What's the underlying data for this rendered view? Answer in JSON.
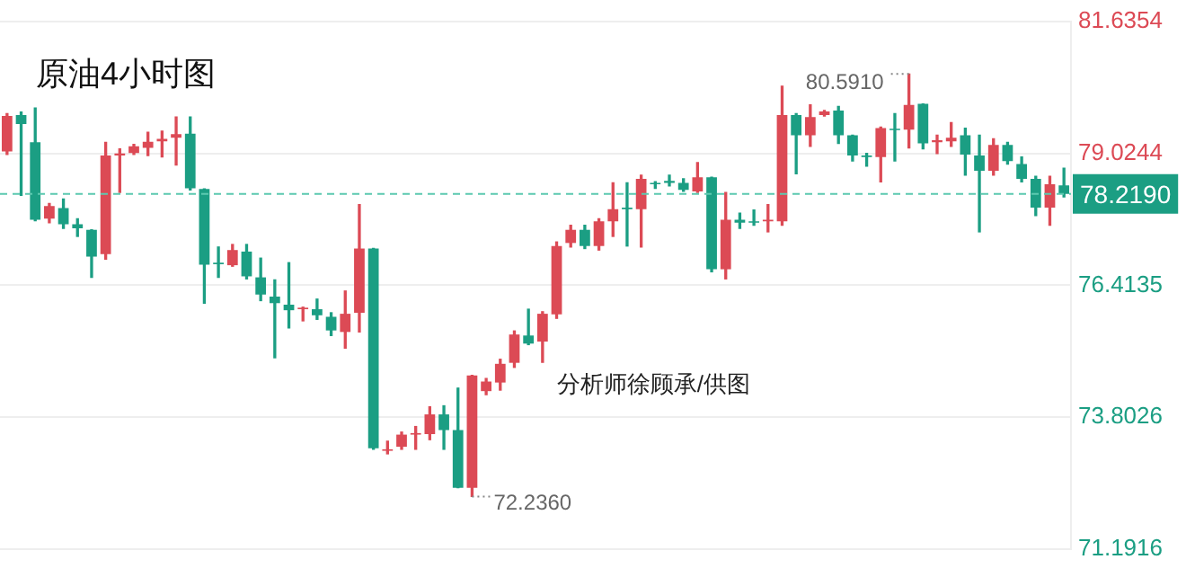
{
  "chart_data": {
    "type": "candlestick",
    "title": "原油4小时图",
    "categories": [
      null,
      null,
      null,
      null,
      null,
      null,
      null,
      null,
      null,
      null,
      null,
      null,
      null,
      null,
      null,
      null,
      null,
      null,
      null,
      null,
      null,
      null,
      null,
      null,
      null,
      null,
      null,
      null,
      null,
      null,
      null,
      null,
      null,
      null,
      null,
      null,
      null,
      null,
      null,
      null,
      null,
      null,
      null,
      null,
      null,
      null,
      null,
      null,
      null,
      null,
      null,
      null,
      null,
      null,
      null,
      null,
      null,
      null,
      null,
      null,
      null,
      null,
      null,
      null,
      null,
      null,
      null,
      null,
      null,
      null,
      null,
      null,
      null,
      null,
      null,
      null
    ],
    "series": [
      {
        "colors": [
          "#dc4a55",
          "#1b9e83",
          "#1b9e83",
          "#dc4a55",
          "#1b9e83",
          "#1b9e83",
          "#1b9e83",
          "#dc4a55",
          "#dc4a55",
          "#dc4a55",
          "#dc4a55",
          "#dc4a55",
          "#dc4a55",
          "#1b9e83",
          "#1b9e83",
          "#1b9e83",
          "#dc4a55",
          "#1b9e83",
          "#1b9e83",
          "#1b9e83",
          "#1b9e83",
          "#dc4a55",
          "#1b9e83",
          "#1b9e83",
          "#dc4a55",
          "#dc4a55",
          "#1b9e83",
          "#dc4a55",
          "#dc4a55",
          "#dc4a55",
          "#dc4a55",
          "#1b9e83",
          "#1b9e83",
          "#dc4a55",
          "#dc4a55",
          "#dc4a55",
          "#dc4a55",
          "#1b9e83",
          "#dc4a55",
          "#dc4a55",
          "#dc4a55",
          "#1b9e83",
          "#dc4a55",
          "#dc4a55",
          "#1b9e83",
          "#dc4a55",
          "#1b9e83",
          "#1b9e83",
          "#1b9e83",
          "#dc4a55",
          "#1b9e83",
          "#dc4a55",
          "#1b9e83",
          "#1b9e83",
          "#dc4a55",
          "#dc4a55",
          "#1b9e83",
          "#dc4a55",
          "#dc4a55",
          "#1b9e83",
          "#1b9e83",
          "#1b9e83",
          "#dc4a55",
          "#1b9e83",
          "#dc4a55",
          "#1b9e83",
          "#dc4a55",
          "#dc4a55",
          "#1b9e83",
          "#1b9e83",
          "#dc4a55",
          "#1b9e83",
          "#1b9e83",
          "#1b9e83",
          "#dc4a55",
          "#1b9e83"
        ],
        "ohlc": [
          [
            79.06,
            79.81,
            79.0,
            79.76
          ],
          [
            79.78,
            79.84,
            78.19,
            79.6
          ],
          [
            79.24,
            79.92,
            77.69,
            77.71
          ],
          [
            77.73,
            78.03,
            77.65,
            77.98
          ],
          [
            77.94,
            78.12,
            77.54,
            77.62
          ],
          [
            77.62,
            77.73,
            77.38,
            77.54
          ],
          [
            77.51,
            77.51,
            76.57,
            76.98
          ],
          [
            77.03,
            79.24,
            76.93,
            78.98
          ],
          [
            78.98,
            79.11,
            78.25,
            79.02
          ],
          [
            79.03,
            79.2,
            79.0,
            79.16
          ],
          [
            79.13,
            79.44,
            78.98,
            79.25
          ],
          [
            79.26,
            79.46,
            78.95,
            79.31
          ],
          [
            79.33,
            79.74,
            78.79,
            79.4
          ],
          [
            79.41,
            79.74,
            78.3,
            78.33
          ],
          [
            78.32,
            78.32,
            76.06,
            76.82
          ],
          [
            76.86,
            77.17,
            76.57,
            76.83
          ],
          [
            76.81,
            77.22,
            76.79,
            77.11
          ],
          [
            77.08,
            77.22,
            76.54,
            76.59
          ],
          [
            76.57,
            76.95,
            76.11,
            76.23
          ],
          [
            76.19,
            76.52,
            74.98,
            76.06
          ],
          [
            76.03,
            76.86,
            75.57,
            75.92
          ],
          [
            75.94,
            75.98,
            75.71,
            75.97
          ],
          [
            75.94,
            76.14,
            75.74,
            75.82
          ],
          [
            75.79,
            75.87,
            75.42,
            75.52
          ],
          [
            75.49,
            76.3,
            75.17,
            75.85
          ],
          [
            75.87,
            78.01,
            75.49,
            77.14
          ],
          [
            77.14,
            77.14,
            73.17,
            73.19
          ],
          [
            73.14,
            73.33,
            73.08,
            73.17
          ],
          [
            73.22,
            73.51,
            73.17,
            73.46
          ],
          [
            73.46,
            73.62,
            73.17,
            73.49
          ],
          [
            73.47,
            74.01,
            73.36,
            73.86
          ],
          [
            73.86,
            74.03,
            73.17,
            73.55
          ],
          [
            73.55,
            74.38,
            72.41,
            72.41
          ],
          [
            72.41,
            74.63,
            72.236,
            74.63
          ],
          [
            74.32,
            74.57,
            74.25,
            74.51
          ],
          [
            74.49,
            74.95,
            74.34,
            74.86
          ],
          [
            74.88,
            75.51,
            74.79,
            75.44
          ],
          [
            75.42,
            75.94,
            75.24,
            75.26
          ],
          [
            75.3,
            75.89,
            74.89,
            75.85
          ],
          [
            75.84,
            77.27,
            75.76,
            77.19
          ],
          [
            77.25,
            77.6,
            77.17,
            77.51
          ],
          [
            77.51,
            77.6,
            77.14,
            77.19
          ],
          [
            77.19,
            77.73,
            77.11,
            77.68
          ],
          [
            77.68,
            78.44,
            77.38,
            77.92
          ],
          [
            77.95,
            78.44,
            77.19,
            77.92
          ],
          [
            77.92,
            78.59,
            77.17,
            78.52
          ],
          [
            78.44,
            78.46,
            78.33,
            78.41
          ],
          [
            78.48,
            78.59,
            78.38,
            78.44
          ],
          [
            78.44,
            78.52,
            78.27,
            78.3
          ],
          [
            78.27,
            78.84,
            78.25,
            78.55
          ],
          [
            78.55,
            78.55,
            76.68,
            76.73
          ],
          [
            76.73,
            78.25,
            76.54,
            77.71
          ],
          [
            77.71,
            77.84,
            77.54,
            77.65
          ],
          [
            77.68,
            77.9,
            77.6,
            77.65
          ],
          [
            77.68,
            78.01,
            77.47,
            77.71
          ],
          [
            77.68,
            80.35,
            77.6,
            79.78
          ],
          [
            79.78,
            79.81,
            78.62,
            79.38
          ],
          [
            79.38,
            79.98,
            79.16,
            79.74
          ],
          [
            79.78,
            79.87,
            79.76,
            79.85
          ],
          [
            79.87,
            79.95,
            79.22,
            79.38
          ],
          [
            79.38,
            79.38,
            78.87,
            78.98
          ],
          [
            78.98,
            79.02,
            78.77,
            78.95
          ],
          [
            78.95,
            79.54,
            78.46,
            79.52
          ],
          [
            79.51,
            79.81,
            78.87,
            79.48
          ],
          [
            79.49,
            80.591,
            79.13,
            79.98
          ],
          [
            80.0,
            80.0,
            79.11,
            79.22
          ],
          [
            79.24,
            79.38,
            79.02,
            79.28
          ],
          [
            79.26,
            79.63,
            79.16,
            79.33
          ],
          [
            79.38,
            79.52,
            78.59,
            79.0
          ],
          [
            78.98,
            79.38,
            77.47,
            78.68
          ],
          [
            78.68,
            79.31,
            78.59,
            79.19
          ],
          [
            79.19,
            79.24,
            78.81,
            78.87
          ],
          [
            78.81,
            78.95,
            78.46,
            78.52
          ],
          [
            78.52,
            78.57,
            77.79,
            77.95
          ],
          [
            77.95,
            78.57,
            77.6,
            78.41
          ],
          [
            78.39,
            78.73,
            78.16,
            78.219
          ]
        ]
      }
    ],
    "ylim": [
      71.1916,
      81.6354
    ],
    "yticks": [
      {
        "value": 71.1916,
        "label": "71.1916"
      },
      {
        "value": 73.8026,
        "label": "73.8026"
      },
      {
        "value": 76.4135,
        "label": "76.4135"
      },
      {
        "value": 79.0244,
        "label": "79.0244"
      },
      {
        "value": 81.6354,
        "label": "81.6354"
      }
    ],
    "grid": "y",
    "legend": false,
    "ref_lines": [
      {
        "axis": "y",
        "value": 78.219,
        "label": "78.2190",
        "color": "#5cc9b0",
        "line_style": "dashed"
      }
    ],
    "annotations": [
      "80.5910",
      "72.2360",
      "分析师徐顾承/供图"
    ]
  }
}
